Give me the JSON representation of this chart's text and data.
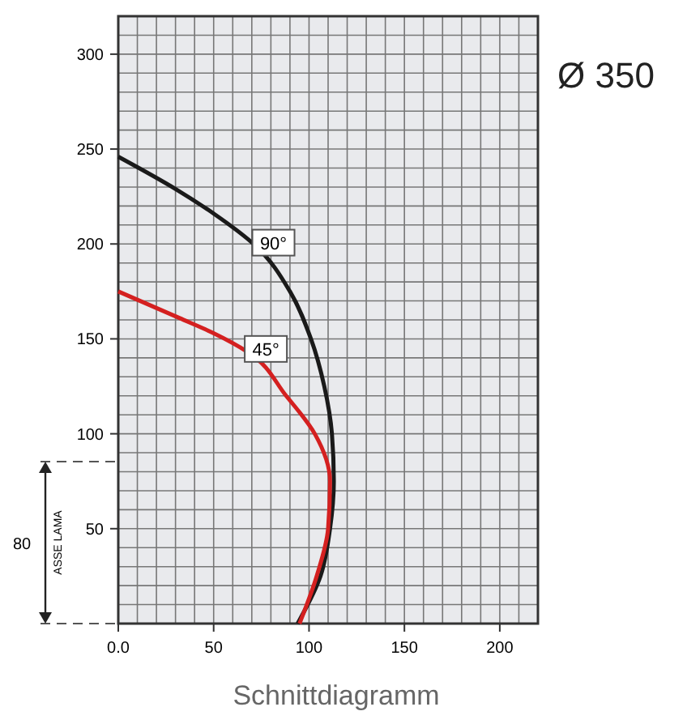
{
  "chart_data": {
    "type": "line",
    "title": "Schnittdiagramm",
    "subtitle": "Ø 350",
    "annotations": [
      "ASSE LAMA",
      "80"
    ],
    "xlim": [
      0,
      220
    ],
    "ylim": [
      0,
      320
    ],
    "xticks": [
      {
        "value": 0,
        "label": "0.0"
      },
      {
        "value": 10,
        "label": null
      },
      {
        "value": 20,
        "label": null
      },
      {
        "value": 30,
        "label": null
      },
      {
        "value": 40,
        "label": null
      },
      50,
      {
        "value": 60,
        "label": null
      },
      {
        "value": 70,
        "label": null
      },
      {
        "value": 80,
        "label": null
      },
      {
        "value": 90,
        "label": null
      },
      100,
      {
        "value": 110,
        "label": null
      },
      {
        "value": 120,
        "label": null
      },
      {
        "value": 130,
        "label": null
      },
      {
        "value": 140,
        "label": null
      },
      150,
      {
        "value": 160,
        "label": null
      },
      {
        "value": 170,
        "label": null
      },
      {
        "value": 180,
        "label": null
      },
      {
        "value": 190,
        "label": null
      },
      200,
      {
        "value": 210,
        "label": null
      },
      {
        "value": 220,
        "label": null
      }
    ],
    "yticks": [
      {
        "value": 10,
        "label": null
      },
      {
        "value": 20,
        "label": null
      },
      {
        "value": 30,
        "label": null
      },
      {
        "value": 40,
        "label": null
      },
      50,
      {
        "value": 60,
        "label": null
      },
      {
        "value": 70,
        "label": null
      },
      {
        "value": 80,
        "label": null
      },
      {
        "value": 90,
        "label": null
      },
      100,
      {
        "value": 110,
        "label": null
      },
      {
        "value": 120,
        "label": null
      },
      {
        "value": 130,
        "label": null
      },
      {
        "value": 140,
        "label": null
      },
      150,
      {
        "value": 160,
        "label": null
      },
      {
        "value": 170,
        "label": null
      },
      {
        "value": 180,
        "label": null
      },
      {
        "value": 190,
        "label": null
      },
      200,
      {
        "value": 210,
        "label": null
      },
      {
        "value": 220,
        "label": null
      },
      {
        "value": 230,
        "label": null
      },
      {
        "value": 240,
        "label": null
      },
      250,
      {
        "value": 260,
        "label": null
      },
      {
        "value": 270,
        "label": null
      },
      {
        "value": 280,
        "label": null
      },
      {
        "value": 290,
        "label": null
      },
      300,
      {
        "value": 310,
        "label": null
      }
    ],
    "grid": true,
    "marker": "none",
    "line_style": "solid",
    "series": [
      {
        "name": "90°",
        "color": "#1a1a1a",
        "x": [
          0,
          30,
          50,
          72,
          90,
          101,
          108,
          112,
          113,
          111,
          106,
          94
        ],
        "values": [
          246,
          229,
          216,
          199,
          175,
          150,
          125,
          100,
          75,
          50,
          25,
          0
        ]
      },
      {
        "name": "45°",
        "color": "#d42020",
        "x": [
          0,
          32,
          50,
          68,
          88,
          103,
          111,
          110,
          104,
          95
        ],
        "values": [
          175,
          161,
          153,
          143,
          120,
          100,
          75,
          50,
          25,
          0
        ]
      }
    ]
  }
}
